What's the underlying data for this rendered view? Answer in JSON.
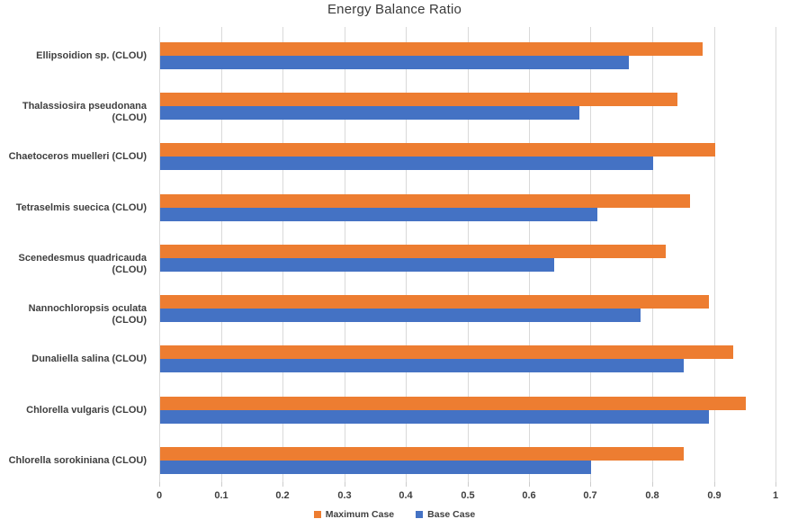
{
  "chart_data": {
    "type": "bar",
    "orientation": "horizontal",
    "title": "Energy Balance Ratio",
    "categories": [
      "Ellipsoidion sp. (CLOU)",
      "Thalassiosira pseudonana (CLOU)",
      "Chaetoceros muelleri (CLOU)",
      "Tetraselmis suecica (CLOU)",
      "Scenedesmus quadricauda (CLOU)",
      "Nannochloropsis oculata (CLOU)",
      "Dunaliella salina (CLOU)",
      "Chlorella vulgaris (CLOU)",
      "Chlorella sorokiniana (CLOU)"
    ],
    "series": [
      {
        "name": "Maximum Case",
        "color": "#ED7D31",
        "values": [
          0.88,
          0.84,
          0.9,
          0.86,
          0.82,
          0.89,
          0.93,
          0.95,
          0.85
        ]
      },
      {
        "name": "Base Case",
        "color": "#4472C4",
        "values": [
          0.76,
          0.68,
          0.8,
          0.71,
          0.64,
          0.78,
          0.85,
          0.89,
          0.7
        ]
      }
    ],
    "xlabel": "",
    "ylabel": "",
    "xlim": [
      0,
      1
    ],
    "xticks": [
      "0",
      "0.1",
      "0.2",
      "0.3",
      "0.4",
      "0.5",
      "0.6",
      "0.7",
      "0.8",
      "0.9",
      "1"
    ],
    "grid": "vertical",
    "gridline_color": "#D9D9D9",
    "text_color": "#3F3F3F",
    "legend_position": "bottom-center"
  }
}
